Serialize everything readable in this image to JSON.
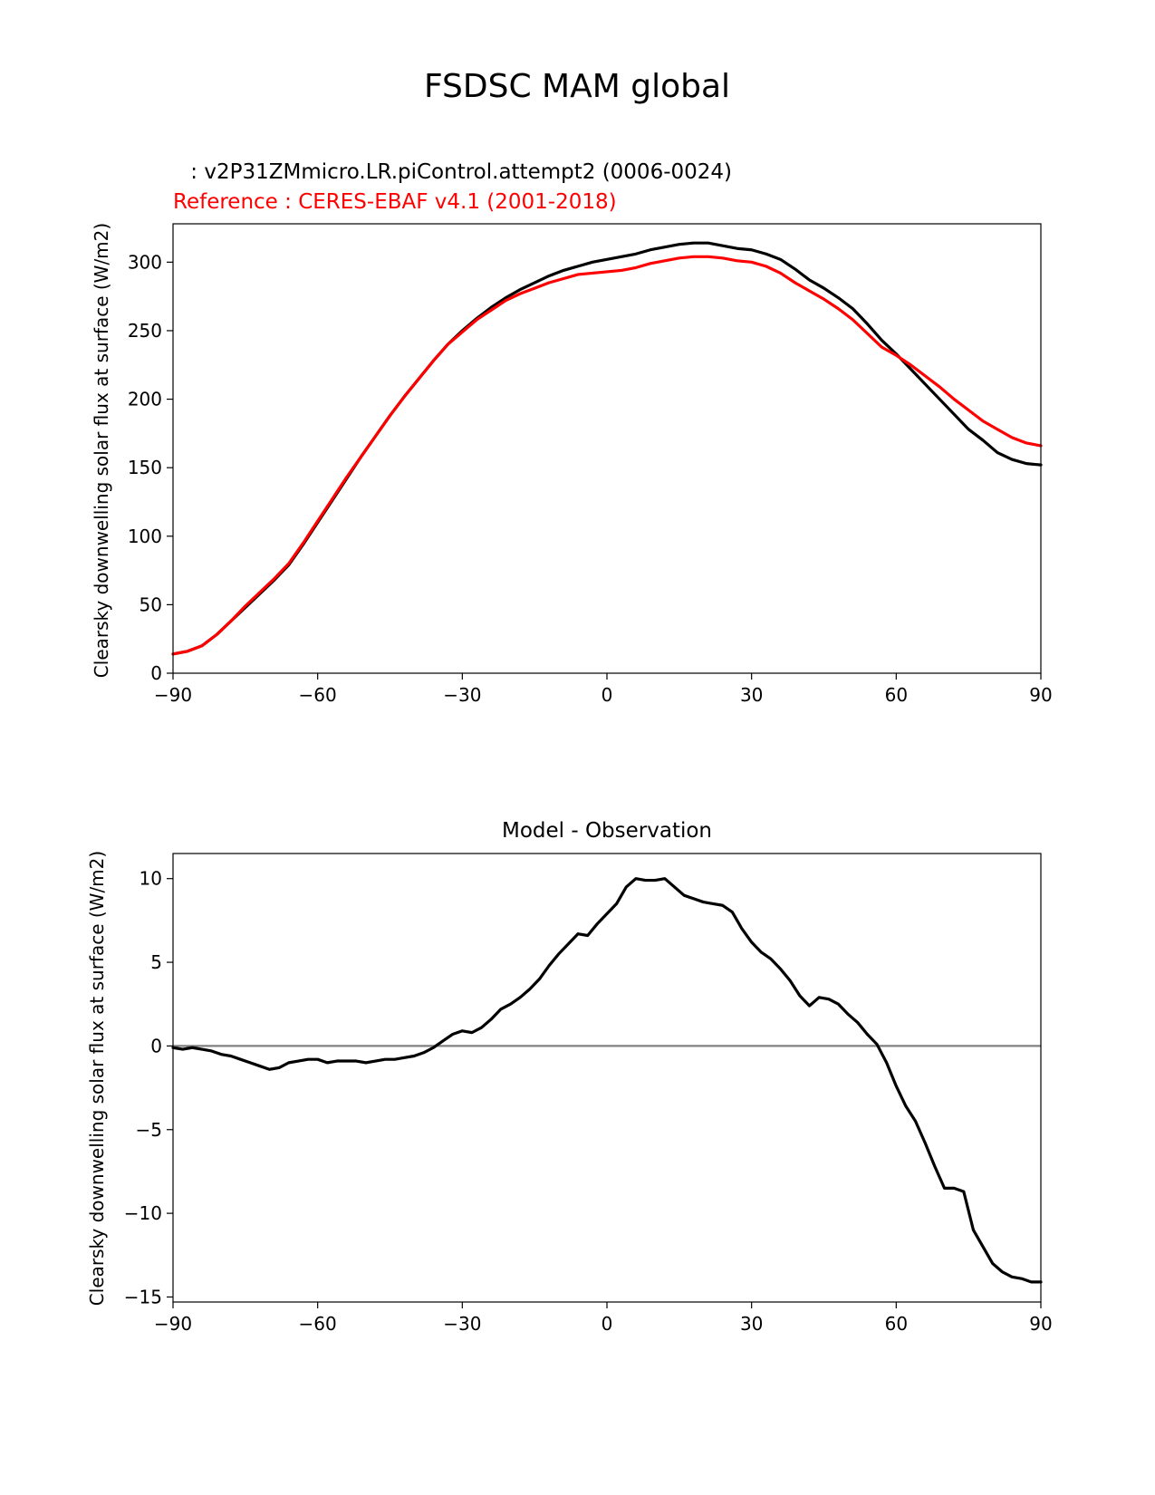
{
  "figure_title": "FSDSC MAM global",
  "colors": {
    "model": "#000000",
    "reference": "#ff0000",
    "zero_line": "#808080"
  },
  "chart_data": [
    {
      "type": "line",
      "test_label": " : v2P31ZMmicro.LR.piControl.attempt2 (0006-0024)",
      "ref_label": "Reference : CERES-EBAF v4.1 (2001-2018)",
      "xlabel": "",
      "ylabel": "Clearsky downwelling solar flux at surface (W/m2)",
      "xlim": [
        -90,
        90
      ],
      "ylim": [
        0,
        328
      ],
      "xticks": [
        -90,
        -60,
        -30,
        0,
        30,
        60,
        90
      ],
      "xtick_labels": [
        "−90",
        "−60",
        "−30",
        "0",
        "30",
        "60",
        "90"
      ],
      "yticks": [
        0,
        50,
        100,
        150,
        200,
        250,
        300
      ],
      "ytick_labels": [
        "0",
        "50",
        "100",
        "150",
        "200",
        "250",
        "300"
      ],
      "grid": false,
      "x": [
        -90,
        -87,
        -84,
        -81,
        -78,
        -75,
        -72,
        -69,
        -66,
        -63,
        -60,
        -57,
        -54,
        -51,
        -48,
        -45,
        -42,
        -39,
        -36,
        -33,
        -30,
        -27,
        -24,
        -21,
        -18,
        -15,
        -12,
        -9,
        -6,
        -3,
        0,
        3,
        6,
        9,
        12,
        15,
        18,
        21,
        24,
        27,
        30,
        33,
        36,
        39,
        42,
        45,
        48,
        51,
        54,
        57,
        60,
        63,
        66,
        69,
        72,
        75,
        78,
        81,
        84,
        87,
        90
      ],
      "series": [
        {
          "name": "model",
          "values": [
            14,
            16,
            20,
            28,
            38,
            48,
            58,
            68,
            79,
            94,
            110,
            126,
            142,
            158,
            173,
            188,
            202,
            215,
            228,
            240,
            250,
            259,
            267,
            274,
            280,
            285,
            290,
            294,
            297,
            300,
            302,
            304,
            306,
            309,
            311,
            313,
            314,
            314,
            312,
            310,
            309,
            306,
            302,
            295,
            287,
            281,
            274,
            266,
            255,
            243,
            233,
            222,
            211,
            200,
            189,
            178,
            170,
            161,
            156,
            153,
            152
          ],
          "color": "#000000"
        },
        {
          "name": "reference",
          "values": [
            14,
            16,
            20,
            28,
            38,
            49,
            59,
            69,
            80,
            95,
            111,
            127,
            143,
            158,
            173,
            188,
            202,
            215,
            228,
            240,
            249,
            258,
            265,
            272,
            277,
            281,
            285,
            288,
            291,
            292,
            293,
            294,
            296,
            299,
            301,
            303,
            304,
            304,
            303,
            301,
            300,
            297,
            292,
            285,
            279,
            273,
            266,
            258,
            248,
            238,
            232,
            225,
            217,
            209,
            200,
            192,
            184,
            178,
            172,
            168,
            166
          ],
          "color": "#ff0000"
        }
      ]
    },
    {
      "type": "line",
      "title": "Model - Observation",
      "xlabel": "",
      "ylabel": "Clearsky downwelling solar flux at surface (W/m2)",
      "xlim": [
        -90,
        90
      ],
      "ylim": [
        -15.3,
        11.5
      ],
      "xticks": [
        -90,
        -60,
        -30,
        0,
        30,
        60,
        90
      ],
      "xtick_labels": [
        "−90",
        "−60",
        "−30",
        "0",
        "30",
        "60",
        "90"
      ],
      "yticks": [
        -15,
        -10,
        -5,
        0,
        5,
        10
      ],
      "ytick_labels": [
        "−15",
        "−10",
        "−5",
        "0",
        "5",
        "10"
      ],
      "grid": false,
      "x": [
        -90,
        -88,
        -86,
        -84,
        -82,
        -80,
        -78,
        -76,
        -74,
        -72,
        -70,
        -68,
        -66,
        -64,
        -62,
        -60,
        -58,
        -56,
        -54,
        -52,
        -50,
        -48,
        -46,
        -44,
        -42,
        -40,
        -38,
        -36,
        -34,
        -32,
        -30,
        -28,
        -26,
        -24,
        -22,
        -20,
        -18,
        -16,
        -14,
        -12,
        -10,
        -8,
        -6,
        -4,
        -2,
        0,
        2,
        4,
        6,
        8,
        10,
        12,
        14,
        16,
        18,
        20,
        22,
        24,
        26,
        28,
        30,
        32,
        34,
        36,
        38,
        40,
        42,
        44,
        46,
        48,
        50,
        52,
        54,
        56,
        58,
        60,
        62,
        64,
        66,
        68,
        70,
        72,
        74,
        76,
        78,
        80,
        82,
        84,
        86,
        88,
        90
      ],
      "series": [
        {
          "name": "Model - Observation",
          "values": [
            -0.1,
            -0.2,
            -0.1,
            -0.2,
            -0.3,
            -0.5,
            -0.6,
            -0.8,
            -1.0,
            -1.2,
            -1.4,
            -1.3,
            -1.0,
            -0.9,
            -0.8,
            -0.8,
            -1.0,
            -0.9,
            -0.9,
            -0.9,
            -1.0,
            -0.9,
            -0.8,
            -0.8,
            -0.7,
            -0.6,
            -0.4,
            -0.1,
            0.3,
            0.7,
            0.9,
            0.8,
            1.1,
            1.6,
            2.2,
            2.5,
            2.9,
            3.4,
            4.0,
            4.8,
            5.5,
            6.1,
            6.7,
            6.6,
            7.3,
            7.9,
            8.5,
            9.5,
            10.0,
            9.9,
            9.9,
            10.0,
            9.5,
            9.0,
            8.8,
            8.6,
            8.5,
            8.4,
            8.0,
            7.0,
            6.2,
            5.6,
            5.2,
            4.6,
            3.9,
            3.0,
            2.4,
            2.9,
            2.8,
            2.5,
            1.9,
            1.4,
            0.7,
            0.1,
            -1.0,
            -2.4,
            -3.6,
            -4.5,
            -5.8,
            -7.2,
            -8.5,
            -8.5,
            -8.7,
            -11.0,
            -12.0,
            -13.0,
            -13.5,
            -13.8,
            -13.9,
            -14.1,
            -14.1
          ],
          "color": "#000000"
        }
      ],
      "zero_line": 0
    }
  ]
}
